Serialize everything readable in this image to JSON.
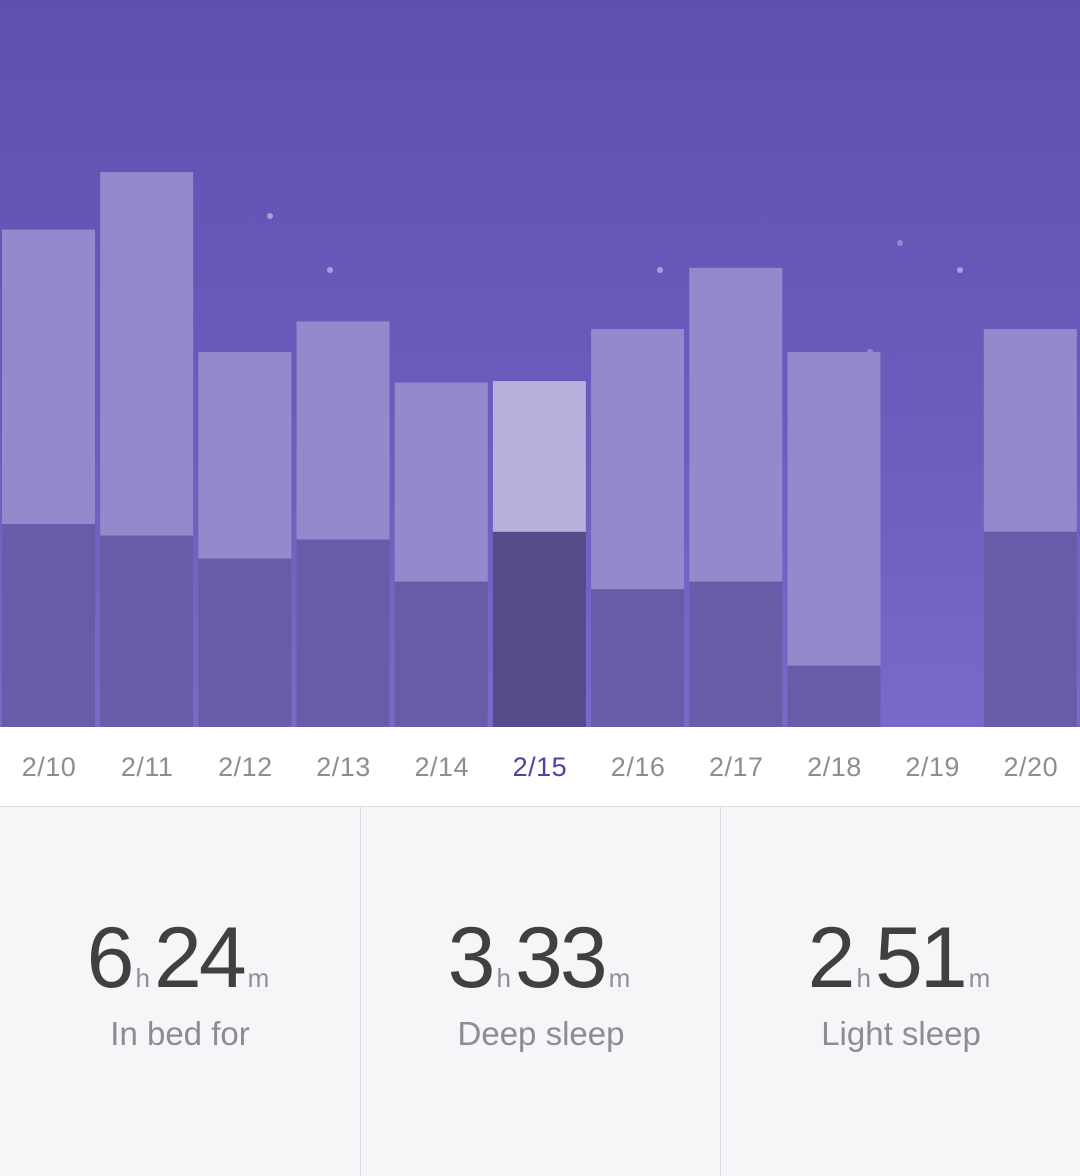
{
  "colors": {
    "bar_light": "#9389cc",
    "bar_deep": "#685ca8",
    "bar_light_selected": "#b5b0dc",
    "bar_deep_selected": "#554b8a",
    "selected_date": "#4a42a5",
    "star": "#b9b3e6"
  },
  "chart_data": {
    "type": "bar",
    "stacked": true,
    "categories": [
      "2/10",
      "2/11",
      "2/12",
      "2/13",
      "2/14",
      "2/15",
      "2/16",
      "2/17",
      "2/18",
      "2/19",
      "2/20"
    ],
    "selected_index": 5,
    "ylim": [
      0,
      9.5
    ],
    "series": [
      {
        "values": [
          2.65,
          2.5,
          2.2,
          2.45,
          1.9,
          2.55,
          1.8,
          1.9,
          0.8,
          0,
          2.55
        ]
      },
      {
        "values": [
          3.85,
          4.75,
          2.7,
          2.85,
          2.6,
          1.97,
          3.4,
          4.1,
          4.1,
          0,
          2.65
        ]
      }
    ]
  },
  "dates": {
    "items": [
      "2/10",
      "2/11",
      "2/12",
      "2/13",
      "2/14",
      "2/15",
      "2/16",
      "2/17",
      "2/18",
      "2/19",
      "2/20"
    ]
  },
  "stats": [
    {
      "hours": "6",
      "h_unit": "h",
      "minutes": "24",
      "m_unit": "m",
      "label": "In bed for"
    },
    {
      "hours": "3",
      "h_unit": "h",
      "minutes": "33",
      "m_unit": "m",
      "label": "Deep sleep"
    },
    {
      "hours": "2",
      "h_unit": "h",
      "minutes": "51",
      "m_unit": "m",
      "label": "Light sleep"
    }
  ]
}
